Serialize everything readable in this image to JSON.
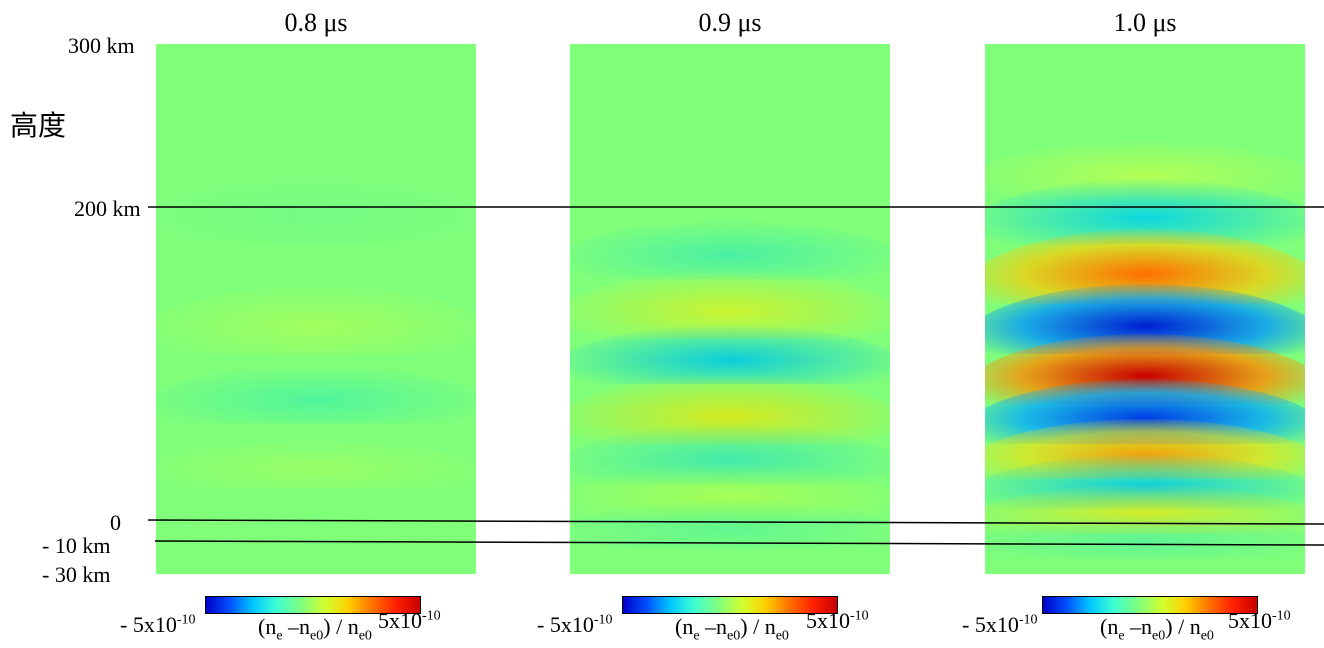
{
  "y_label": "高度",
  "altitude_ticks": [
    "300 km",
    "200 km",
    "0",
    "- 10 km",
    "- 30 km"
  ],
  "panels": [
    {
      "title": "0.8 μs"
    },
    {
      "title": "0.9 μs"
    },
    {
      "title": "1.0 μs"
    }
  ],
  "colorbar": {
    "min_base": "- 5x10",
    "min_exp": "-10",
    "max_base": "5x10",
    "max_exp": "-10",
    "formula_a": "(n",
    "formula_a_sub": "e",
    "formula_b": " –n",
    "formula_b_sub": "e0",
    "formula_c": ") / n",
    "formula_c_sub": "e0"
  },
  "colors": {
    "background_field": "#80ff7a",
    "line": "#000000"
  }
}
